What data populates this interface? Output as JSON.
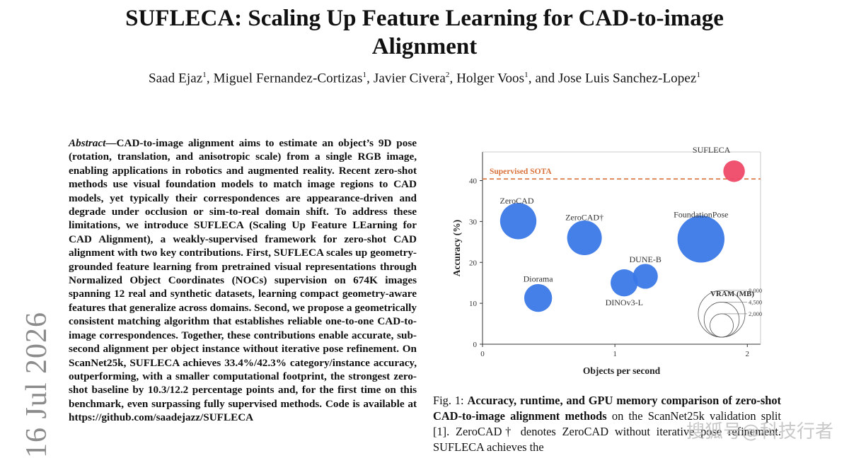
{
  "paper": {
    "title": "SUFLECA: Scaling Up Feature Learning for CAD-to-image Alignment",
    "authors": [
      {
        "name": "Saad Ejaz",
        "aff": "1"
      },
      {
        "name": "Miguel Fernandez-Cortizas",
        "aff": "1"
      },
      {
        "name": "Javier Civera",
        "aff": "2"
      },
      {
        "name": "Holger Voos",
        "aff": "1"
      },
      {
        "name": "and Jose Luis Sanchez-Lopez",
        "aff": "1"
      }
    ],
    "arxiv_stamp": "16 Jul 2026",
    "abstract_lead": "Abstract—",
    "abstract_body": "CAD-to-image alignment aims to estimate an object’s 9D pose (rotation, translation, and anisotropic scale) from a single RGB image, enabling applications in robotics and augmented reality. Recent zero-shot methods use visual foundation models to match image regions to CAD models, yet typically their correspondences are appearance-driven and degrade under occlusion or sim-to-real domain shift. To address these limitations, we introduce SUFLECA (Scaling Up Feature LEarning for CAD Alignment), a weakly-supervised framework for zero-shot CAD alignment with two key contributions. First, SUFLECA scales up geometry-grounded feature learning from pretrained visual representations through Normalized Object Coordinates (NOCs) supervision on 674K images spanning 12 real and synthetic datasets, learning compact geometry-aware features that generalize across domains. Second, we propose a geometrically consistent matching algorithm that establishes reliable one-to-one CAD-to-image correspondences. Together, these contributions enable accurate, sub-second alignment per object instance without iterative pose refinement. On ScanNet25k, SUFLECA achieves 33.4%/42.3% category/instance accuracy, outperforming, with a smaller computational footprint, the strongest zero-shot baseline by 10.3/12.2 percentage points and, for the first time on this benchmark, even surpassing fully supervised methods. Code is available at https://github.com/saadejazz/SUFLECA",
    "caption_label": "Fig. 1:",
    "caption_bold": "Accuracy, runtime, and GPU memory comparison of zero-shot CAD-to-image alignment methods",
    "caption_rest": " on the ScanNet25k validation split [1]. ZeroCAD† denotes ZeroCAD without iterative pose refinement. SUFLECA achieves the",
    "watermark": "搜狐号@科技行者"
  },
  "chart_data": {
    "type": "scatter",
    "xlabel": "Objects per second",
    "ylabel": "Accuracy (%)",
    "xlim": [
      0,
      2.1
    ],
    "ylim": [
      0,
      47
    ],
    "xticks": [
      0,
      1,
      2
    ],
    "yticks": [
      0,
      10,
      20,
      30,
      40
    ],
    "reference_line": {
      "label": "Supervised SOTA",
      "y": 40.4,
      "color": "#d9713a"
    },
    "colors": {
      "baseline": "#3b78e7",
      "ours": "#ef4a68"
    },
    "size_legend": {
      "title": "VRAM (MB)",
      "values": [
        8000,
        4500,
        2000
      ]
    },
    "points": [
      {
        "name": "SUFLECA",
        "x": 1.9,
        "y": 42.3,
        "vram": 1200,
        "highlight": true
      },
      {
        "name": "ZeroCAD",
        "x": 0.27,
        "y": 30.1,
        "vram": 3400
      },
      {
        "name": "ZeroCAD†",
        "x": 0.77,
        "y": 26.0,
        "vram": 3100
      },
      {
        "name": "FoundationPose",
        "x": 1.65,
        "y": 25.7,
        "vram": 5700
      },
      {
        "name": "DUNE-B",
        "x": 1.23,
        "y": 16.6,
        "vram": 1600
      },
      {
        "name": "DINOv3-L",
        "x": 1.07,
        "y": 15.0,
        "vram": 1900
      },
      {
        "name": "Diorama",
        "x": 0.42,
        "y": 11.3,
        "vram": 2000
      }
    ]
  }
}
